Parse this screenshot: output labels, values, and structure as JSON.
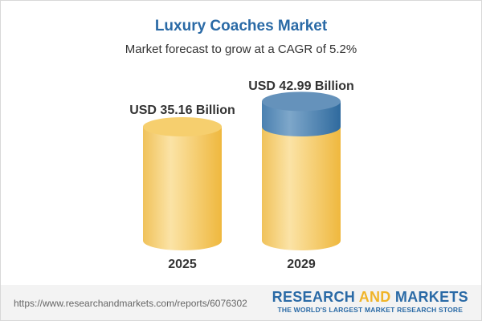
{
  "title": "Luxury Coaches Market",
  "subtitle": "Market forecast to grow at a CAGR of 5.2%",
  "chart_data": {
    "type": "bar",
    "style": "3d-cylinder",
    "categories": [
      "2025",
      "2029"
    ],
    "values": [
      35.16,
      42.99
    ],
    "data_labels": [
      "USD 35.16 Billion",
      "USD 42.99 Billion"
    ],
    "unit": "USD Billion",
    "colors": {
      "base": "#f3c55c",
      "growth": "#3f78a8"
    }
  },
  "footer": {
    "url": "https://www.researchandmarkets.com/reports/6076302",
    "logo_part1": "RESEARCH ",
    "logo_part2": "AND",
    "logo_part3": " MARKETS",
    "tagline": "THE WORLD'S LARGEST MARKET RESEARCH STORE"
  }
}
